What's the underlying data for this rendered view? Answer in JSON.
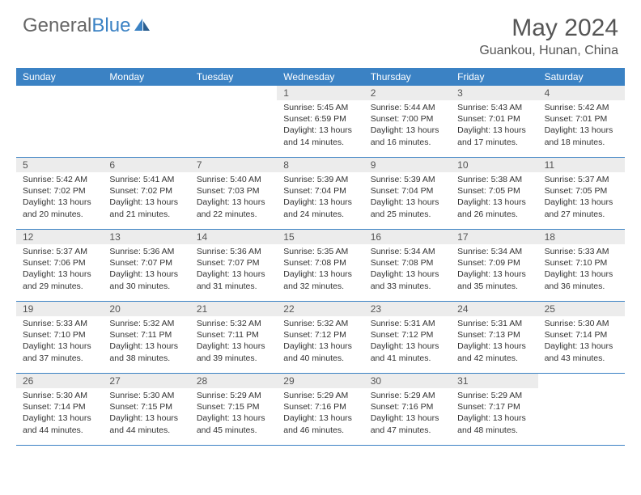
{
  "logo": {
    "text1": "General",
    "text2": "Blue"
  },
  "title": {
    "month": "May 2024",
    "location": "Guankou, Hunan, China"
  },
  "colors": {
    "header_bg": "#3b82c4",
    "numbar_bg": "#ececec",
    "border": "#3b82c4"
  },
  "daysOfWeek": [
    "Sunday",
    "Monday",
    "Tuesday",
    "Wednesday",
    "Thursday",
    "Friday",
    "Saturday"
  ],
  "weeks": [
    [
      {
        "n": "",
        "sunrise": "",
        "sunset": "",
        "daylight": ""
      },
      {
        "n": "",
        "sunrise": "",
        "sunset": "",
        "daylight": ""
      },
      {
        "n": "",
        "sunrise": "",
        "sunset": "",
        "daylight": ""
      },
      {
        "n": "1",
        "sunrise": "Sunrise: 5:45 AM",
        "sunset": "Sunset: 6:59 PM",
        "daylight": "Daylight: 13 hours and 14 minutes."
      },
      {
        "n": "2",
        "sunrise": "Sunrise: 5:44 AM",
        "sunset": "Sunset: 7:00 PM",
        "daylight": "Daylight: 13 hours and 16 minutes."
      },
      {
        "n": "3",
        "sunrise": "Sunrise: 5:43 AM",
        "sunset": "Sunset: 7:01 PM",
        "daylight": "Daylight: 13 hours and 17 minutes."
      },
      {
        "n": "4",
        "sunrise": "Sunrise: 5:42 AM",
        "sunset": "Sunset: 7:01 PM",
        "daylight": "Daylight: 13 hours and 18 minutes."
      }
    ],
    [
      {
        "n": "5",
        "sunrise": "Sunrise: 5:42 AM",
        "sunset": "Sunset: 7:02 PM",
        "daylight": "Daylight: 13 hours and 20 minutes."
      },
      {
        "n": "6",
        "sunrise": "Sunrise: 5:41 AM",
        "sunset": "Sunset: 7:02 PM",
        "daylight": "Daylight: 13 hours and 21 minutes."
      },
      {
        "n": "7",
        "sunrise": "Sunrise: 5:40 AM",
        "sunset": "Sunset: 7:03 PM",
        "daylight": "Daylight: 13 hours and 22 minutes."
      },
      {
        "n": "8",
        "sunrise": "Sunrise: 5:39 AM",
        "sunset": "Sunset: 7:04 PM",
        "daylight": "Daylight: 13 hours and 24 minutes."
      },
      {
        "n": "9",
        "sunrise": "Sunrise: 5:39 AM",
        "sunset": "Sunset: 7:04 PM",
        "daylight": "Daylight: 13 hours and 25 minutes."
      },
      {
        "n": "10",
        "sunrise": "Sunrise: 5:38 AM",
        "sunset": "Sunset: 7:05 PM",
        "daylight": "Daylight: 13 hours and 26 minutes."
      },
      {
        "n": "11",
        "sunrise": "Sunrise: 5:37 AM",
        "sunset": "Sunset: 7:05 PM",
        "daylight": "Daylight: 13 hours and 27 minutes."
      }
    ],
    [
      {
        "n": "12",
        "sunrise": "Sunrise: 5:37 AM",
        "sunset": "Sunset: 7:06 PM",
        "daylight": "Daylight: 13 hours and 29 minutes."
      },
      {
        "n": "13",
        "sunrise": "Sunrise: 5:36 AM",
        "sunset": "Sunset: 7:07 PM",
        "daylight": "Daylight: 13 hours and 30 minutes."
      },
      {
        "n": "14",
        "sunrise": "Sunrise: 5:36 AM",
        "sunset": "Sunset: 7:07 PM",
        "daylight": "Daylight: 13 hours and 31 minutes."
      },
      {
        "n": "15",
        "sunrise": "Sunrise: 5:35 AM",
        "sunset": "Sunset: 7:08 PM",
        "daylight": "Daylight: 13 hours and 32 minutes."
      },
      {
        "n": "16",
        "sunrise": "Sunrise: 5:34 AM",
        "sunset": "Sunset: 7:08 PM",
        "daylight": "Daylight: 13 hours and 33 minutes."
      },
      {
        "n": "17",
        "sunrise": "Sunrise: 5:34 AM",
        "sunset": "Sunset: 7:09 PM",
        "daylight": "Daylight: 13 hours and 35 minutes."
      },
      {
        "n": "18",
        "sunrise": "Sunrise: 5:33 AM",
        "sunset": "Sunset: 7:10 PM",
        "daylight": "Daylight: 13 hours and 36 minutes."
      }
    ],
    [
      {
        "n": "19",
        "sunrise": "Sunrise: 5:33 AM",
        "sunset": "Sunset: 7:10 PM",
        "daylight": "Daylight: 13 hours and 37 minutes."
      },
      {
        "n": "20",
        "sunrise": "Sunrise: 5:32 AM",
        "sunset": "Sunset: 7:11 PM",
        "daylight": "Daylight: 13 hours and 38 minutes."
      },
      {
        "n": "21",
        "sunrise": "Sunrise: 5:32 AM",
        "sunset": "Sunset: 7:11 PM",
        "daylight": "Daylight: 13 hours and 39 minutes."
      },
      {
        "n": "22",
        "sunrise": "Sunrise: 5:32 AM",
        "sunset": "Sunset: 7:12 PM",
        "daylight": "Daylight: 13 hours and 40 minutes."
      },
      {
        "n": "23",
        "sunrise": "Sunrise: 5:31 AM",
        "sunset": "Sunset: 7:12 PM",
        "daylight": "Daylight: 13 hours and 41 minutes."
      },
      {
        "n": "24",
        "sunrise": "Sunrise: 5:31 AM",
        "sunset": "Sunset: 7:13 PM",
        "daylight": "Daylight: 13 hours and 42 minutes."
      },
      {
        "n": "25",
        "sunrise": "Sunrise: 5:30 AM",
        "sunset": "Sunset: 7:14 PM",
        "daylight": "Daylight: 13 hours and 43 minutes."
      }
    ],
    [
      {
        "n": "26",
        "sunrise": "Sunrise: 5:30 AM",
        "sunset": "Sunset: 7:14 PM",
        "daylight": "Daylight: 13 hours and 44 minutes."
      },
      {
        "n": "27",
        "sunrise": "Sunrise: 5:30 AM",
        "sunset": "Sunset: 7:15 PM",
        "daylight": "Daylight: 13 hours and 44 minutes."
      },
      {
        "n": "28",
        "sunrise": "Sunrise: 5:29 AM",
        "sunset": "Sunset: 7:15 PM",
        "daylight": "Daylight: 13 hours and 45 minutes."
      },
      {
        "n": "29",
        "sunrise": "Sunrise: 5:29 AM",
        "sunset": "Sunset: 7:16 PM",
        "daylight": "Daylight: 13 hours and 46 minutes."
      },
      {
        "n": "30",
        "sunrise": "Sunrise: 5:29 AM",
        "sunset": "Sunset: 7:16 PM",
        "daylight": "Daylight: 13 hours and 47 minutes."
      },
      {
        "n": "31",
        "sunrise": "Sunrise: 5:29 AM",
        "sunset": "Sunset: 7:17 PM",
        "daylight": "Daylight: 13 hours and 48 minutes."
      },
      {
        "n": "",
        "sunrise": "",
        "sunset": "",
        "daylight": ""
      }
    ]
  ]
}
